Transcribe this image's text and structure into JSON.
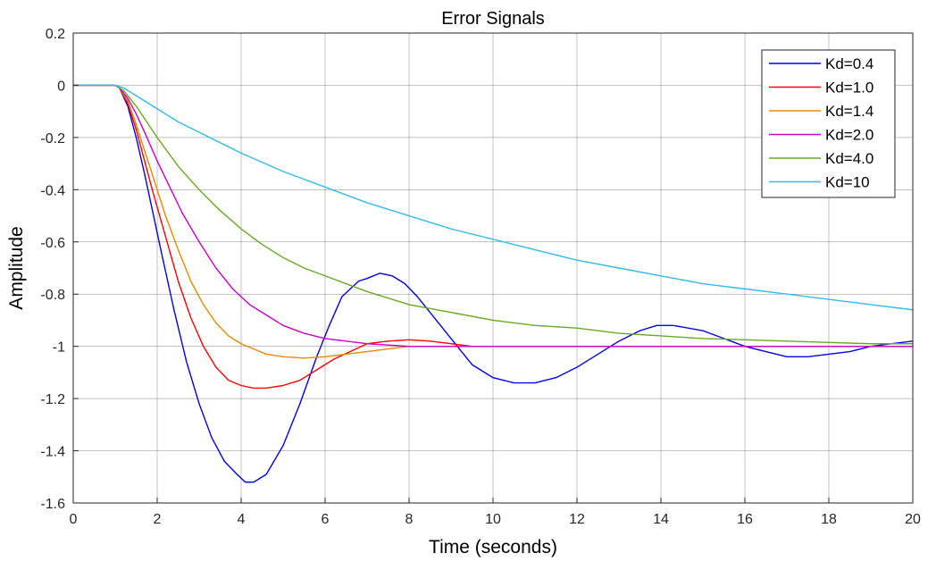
{
  "chart_data": {
    "type": "line",
    "title": "Error Signals",
    "xlabel": "Time (seconds)",
    "ylabel": "Amplitude",
    "xlim": [
      0,
      20
    ],
    "ylim": [
      -1.6,
      0.2
    ],
    "xticks": [
      0,
      2,
      4,
      6,
      8,
      10,
      12,
      14,
      16,
      18,
      20
    ],
    "yticks": [
      0.2,
      0,
      -0.2,
      -0.4,
      -0.6,
      -0.8,
      -1,
      -1.2,
      -1.4,
      -1.6
    ],
    "xtick_labels": [
      "0",
      "2",
      "4",
      "6",
      "8",
      "10",
      "12",
      "14",
      "16",
      "18",
      "20"
    ],
    "ytick_labels": [
      "0.2",
      "0",
      "-0.2",
      "-0.4",
      "-0.6",
      "-0.8",
      "-1",
      "-1.2",
      "-1.4",
      "-1.6"
    ],
    "grid": true,
    "legend_position": "top-right",
    "series": [
      {
        "name": "Kd=0.4",
        "color": "#0000e6",
        "x": [
          0,
          1,
          1.1,
          1.3,
          1.5,
          1.7,
          1.9,
          2.1,
          2.4,
          2.7,
          3.0,
          3.3,
          3.6,
          3.9,
          4.1,
          4.3,
          4.6,
          5.0,
          5.4,
          5.8,
          6.1,
          6.4,
          6.8,
          7.0,
          7.3,
          7.6,
          7.9,
          8.2,
          8.5,
          9.0,
          9.5,
          10.0,
          10.5,
          11.0,
          11.5,
          12.0,
          12.5,
          13.0,
          13.5,
          13.9,
          14.3,
          15.0,
          15.5,
          16.0,
          16.5,
          17.0,
          17.5,
          18.0,
          18.5,
          19.0,
          19.5,
          20.0
        ],
        "y": [
          0,
          0,
          -0.01,
          -0.08,
          -0.2,
          -0.34,
          -0.49,
          -0.64,
          -0.86,
          -1.06,
          -1.22,
          -1.35,
          -1.44,
          -1.49,
          -1.52,
          -1.52,
          -1.49,
          -1.38,
          -1.22,
          -1.04,
          -0.92,
          -0.81,
          -0.75,
          -0.74,
          -0.72,
          -0.73,
          -0.76,
          -0.81,
          -0.87,
          -0.97,
          -1.07,
          -1.12,
          -1.14,
          -1.14,
          -1.12,
          -1.08,
          -1.03,
          -0.98,
          -0.94,
          -0.92,
          -0.92,
          -0.94,
          -0.97,
          -1.0,
          -1.02,
          -1.04,
          -1.04,
          -1.03,
          -1.02,
          -1.0,
          -0.99,
          -0.98
        ]
      },
      {
        "name": "Kd=1.0",
        "color": "#ff0000",
        "x": [
          0,
          1,
          1.1,
          1.3,
          1.5,
          1.7,
          1.9,
          2.2,
          2.5,
          2.8,
          3.1,
          3.4,
          3.7,
          4.0,
          4.3,
          4.6,
          5.0,
          5.4,
          5.8,
          6.2,
          6.6,
          7.0,
          7.5,
          8.0,
          8.5,
          9.0,
          9.5,
          10.0,
          10.5,
          11.0,
          12.0,
          13.0,
          14.0,
          16.0,
          18.0,
          20.0
        ],
        "y": [
          0,
          0,
          -0.01,
          -0.07,
          -0.17,
          -0.29,
          -0.41,
          -0.58,
          -0.75,
          -0.89,
          -1.0,
          -1.08,
          -1.13,
          -1.15,
          -1.16,
          -1.16,
          -1.15,
          -1.13,
          -1.09,
          -1.05,
          -1.02,
          -0.99,
          -0.98,
          -0.975,
          -0.98,
          -0.99,
          -1.0,
          -1.0,
          -1.0,
          -1.0,
          -1.0,
          -1.0,
          -1.0,
          -1.0,
          -1.0,
          -1.0
        ]
      },
      {
        "name": "Kd=1.4",
        "color": "#e68a00",
        "x": [
          0,
          1,
          1.1,
          1.3,
          1.5,
          1.7,
          1.9,
          2.2,
          2.5,
          2.8,
          3.1,
          3.4,
          3.7,
          4.0,
          4.3,
          4.6,
          5.0,
          5.5,
          6.0,
          6.5,
          7.0,
          7.5,
          8.0,
          9.0,
          10.0,
          12.0,
          14.0,
          16.0,
          18.0,
          20.0
        ],
        "y": [
          0,
          0,
          -0.01,
          -0.06,
          -0.15,
          -0.25,
          -0.35,
          -0.5,
          -0.63,
          -0.75,
          -0.84,
          -0.91,
          -0.96,
          -0.99,
          -1.01,
          -1.03,
          -1.04,
          -1.045,
          -1.04,
          -1.03,
          -1.02,
          -1.01,
          -1.0,
          -1.0,
          -1.0,
          -1.0,
          -1.0,
          -1.0,
          -1.0,
          -1.0
        ]
      },
      {
        "name": "Kd=2.0",
        "color": "#cc00cc",
        "x": [
          0,
          1,
          1.1,
          1.3,
          1.5,
          1.7,
          2.0,
          2.3,
          2.6,
          3.0,
          3.4,
          3.8,
          4.2,
          4.6,
          5.0,
          5.5,
          6.0,
          6.5,
          7.0,
          7.5,
          8.0,
          9.0,
          10.0,
          12.0,
          14.0,
          16.0,
          18.0,
          20.0
        ],
        "y": [
          0,
          0,
          -0.01,
          -0.05,
          -0.11,
          -0.18,
          -0.29,
          -0.39,
          -0.49,
          -0.6,
          -0.7,
          -0.78,
          -0.84,
          -0.88,
          -0.92,
          -0.95,
          -0.97,
          -0.98,
          -0.99,
          -0.995,
          -1.0,
          -1.0,
          -1.0,
          -1.0,
          -1.0,
          -1.0,
          -1.0,
          -1.0
        ]
      },
      {
        "name": "Kd=4.0",
        "color": "#66aa22",
        "x": [
          0,
          1,
          1.2,
          1.5,
          2.0,
          2.5,
          3.0,
          3.5,
          4.0,
          4.5,
          5.0,
          5.5,
          6.0,
          7.0,
          8.0,
          9.0,
          10.0,
          11.0,
          12.0,
          13.0,
          14.0,
          15.0,
          16.0,
          17.0,
          18.0,
          19.0,
          20.0
        ],
        "y": [
          0,
          0,
          -0.02,
          -0.08,
          -0.2,
          -0.31,
          -0.4,
          -0.48,
          -0.55,
          -0.61,
          -0.66,
          -0.7,
          -0.73,
          -0.79,
          -0.84,
          -0.87,
          -0.9,
          -0.92,
          -0.93,
          -0.95,
          -0.96,
          -0.97,
          -0.975,
          -0.98,
          -0.985,
          -0.99,
          -0.99
        ]
      },
      {
        "name": "Kd=10",
        "color": "#33bbee",
        "x": [
          0,
          1,
          1.2,
          1.5,
          2.0,
          2.5,
          3.0,
          4.0,
          5.0,
          6.0,
          7.0,
          8.0,
          9.0,
          10.0,
          11.0,
          12.0,
          13.0,
          14.0,
          15.0,
          16.0,
          17.0,
          18.0,
          19.0,
          20.0
        ],
        "y": [
          0,
          0,
          -0.01,
          -0.04,
          -0.09,
          -0.14,
          -0.18,
          -0.26,
          -0.33,
          -0.39,
          -0.45,
          -0.5,
          -0.55,
          -0.59,
          -0.63,
          -0.67,
          -0.7,
          -0.73,
          -0.76,
          -0.78,
          -0.8,
          -0.82,
          -0.84,
          -0.86
        ]
      }
    ]
  }
}
